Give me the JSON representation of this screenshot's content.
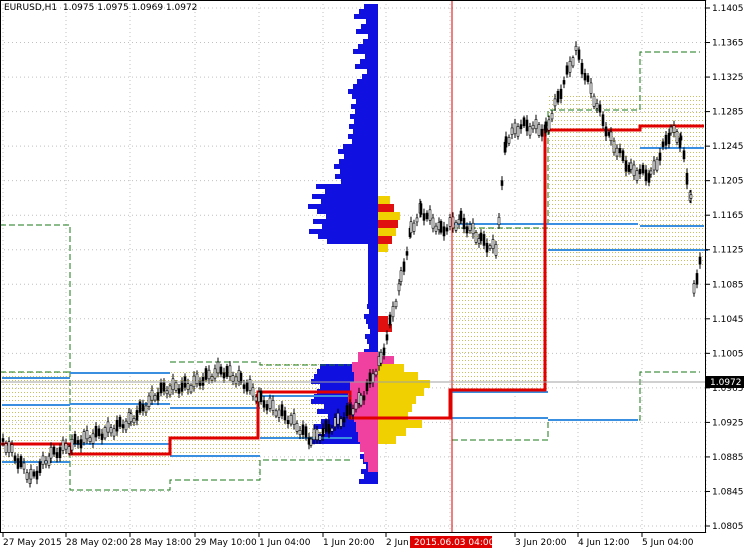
{
  "header": {
    "symbol": "EURUSD,H1",
    "ohlc": "1.0975 1.0975 1.0969 1.0972"
  },
  "price_axis": {
    "ticks": [
      "1.1405",
      "1.1365",
      "1.1325",
      "1.1285",
      "1.1245",
      "1.1205",
      "1.1165",
      "1.1125",
      "1.1085",
      "1.1045",
      "1.1005",
      "1.0965",
      "1.0925",
      "1.0885",
      "1.0845",
      "1.0805"
    ],
    "current_price": "1.0972"
  },
  "time_axis": {
    "labels": [
      "27 May 2015",
      "28 May 02:00",
      "28 May 18:00",
      "29 May 10:00",
      "1 Jun 04:00",
      "1 Jun 20:00",
      "2 Jun",
      "3 Jun 20:00",
      "4 Jun 12:00",
      "5 Jun 04:00"
    ],
    "crosshair_label": "2015.06.03 04:00"
  },
  "colors": {
    "background": "#ffffff",
    "grid": "#c0c0c0",
    "candle": "#000000",
    "poc_line": "#e00000",
    "value_lines": "#3a8fe0",
    "envelope": "#1a7a1a",
    "value_area_dots": "#c8c060",
    "profile_blue": "#1010e0",
    "profile_yellow": "#f0d000",
    "profile_red": "#e01010",
    "profile_pink": "#f040a0",
    "crosshair": "#e00000"
  }
}
